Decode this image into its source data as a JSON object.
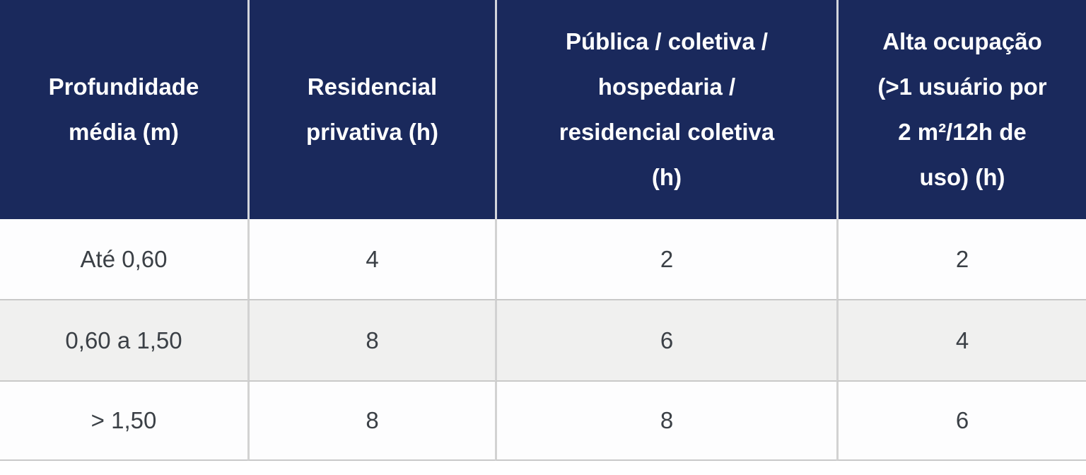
{
  "table": {
    "headers": [
      "Profundidade\nmédia (m)",
      "Residencial\nprivativa (h)",
      "Pública / coletiva /\nhospedaria /\nresidencial coletiva\n(h)",
      "Alta ocupação\n(>1 usuário por\n2 m²/12h de\nuso) (h)"
    ],
    "rows": [
      [
        "Até 0,60",
        "4",
        "2",
        "2"
      ],
      [
        "0,60 a 1,50",
        "8",
        "6",
        "4"
      ],
      [
        "> 1,50",
        "8",
        "8",
        "6"
      ]
    ]
  },
  "colors": {
    "header_bg": "#1a295c",
    "header_text": "#ffffff",
    "row_bg": "#fdfdfe",
    "row_alt_bg": "#f0f0ef",
    "body_text": "#3b4046",
    "grid_line": "#c9c9c9"
  },
  "chart_data": {
    "type": "table",
    "title": "",
    "columns": [
      "Profundidade média (m)",
      "Residencial privativa (h)",
      "Pública / coletiva / hospedaria / residencial coletiva (h)",
      "Alta ocupação (>1 usuário por 2 m²/12h de uso) (h)"
    ],
    "rows": [
      [
        "Até 0,60",
        4,
        2,
        2
      ],
      [
        "0,60 a 1,50",
        8,
        6,
        4
      ],
      [
        "> 1,50",
        8,
        8,
        6
      ]
    ]
  }
}
